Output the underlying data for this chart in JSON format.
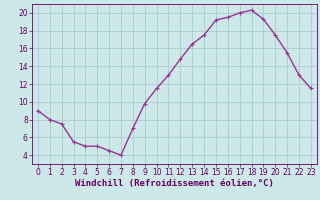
{
  "x": [
    0,
    1,
    2,
    3,
    4,
    5,
    6,
    7,
    8,
    9,
    10,
    11,
    12,
    13,
    14,
    15,
    16,
    17,
    18,
    19,
    20,
    21,
    22,
    23
  ],
  "y": [
    9,
    8,
    7.5,
    5.5,
    5,
    5,
    4.5,
    4,
    7,
    9.8,
    11.5,
    13,
    14.8,
    16.5,
    17.5,
    19.2,
    19.5,
    20,
    20.3,
    19.3,
    17.5,
    15.5,
    13,
    11.5
  ],
  "line_color": "#993399",
  "marker": "P",
  "marker_size": 2.5,
  "xlabel": "Windchill (Refroidissement éolien,°C)",
  "xlim": [
    -0.5,
    23.5
  ],
  "ylim": [
    3.0,
    21.0
  ],
  "yticks": [
    4,
    6,
    8,
    10,
    12,
    14,
    16,
    18,
    20
  ],
  "xticks": [
    0,
    1,
    2,
    3,
    4,
    5,
    6,
    7,
    8,
    9,
    10,
    11,
    12,
    13,
    14,
    15,
    16,
    17,
    18,
    19,
    20,
    21,
    22,
    23
  ],
  "background_color": "#cce8e8",
  "grid_color": "#aacccc",
  "tick_fontsize": 5.5,
  "xlabel_fontsize": 6.5,
  "font_color": "#660066"
}
